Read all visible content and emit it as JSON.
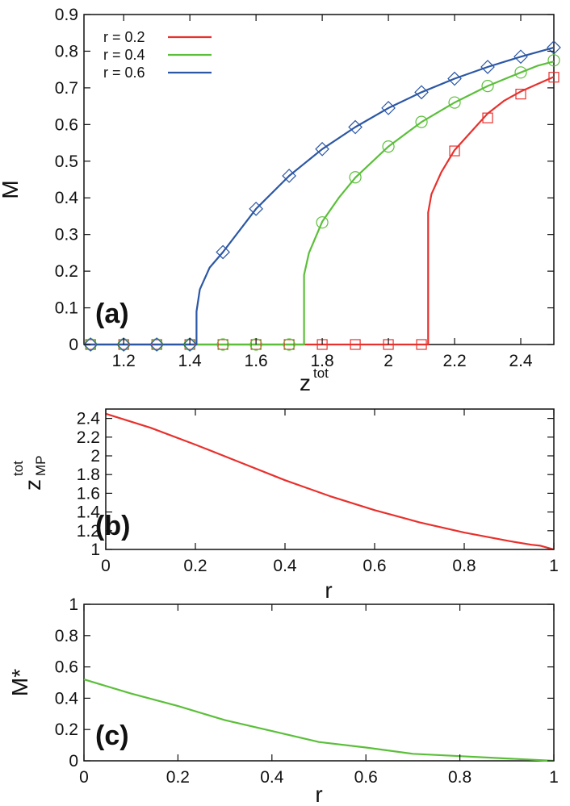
{
  "chart_data": [
    {
      "panel_label": "(a)",
      "type": "line",
      "xlabel": "z",
      "xlabel_sup": "tot",
      "ylabel": "M",
      "xlim": [
        1.08,
        2.5
      ],
      "ylim": [
        0,
        0.9
      ],
      "xticks": [
        "1.2",
        "1.4",
        "1.6",
        "1.8",
        "2",
        "2.2",
        "2.4"
      ],
      "yticks": [
        "0",
        "0.1",
        "0.2",
        "0.3",
        "0.4",
        "0.5",
        "0.6",
        "0.7",
        "0.8",
        "0.9"
      ],
      "legend_position": "top-left",
      "series": [
        {
          "name": "r = 0.2",
          "color": "#e8302c",
          "marker": "square",
          "threshold": 2.12,
          "jump": 0.36,
          "curve": [
            [
              1.08,
              0
            ],
            [
              2.12,
              0
            ],
            [
              2.12,
              0.36
            ],
            [
              2.13,
              0.41
            ],
            [
              2.16,
              0.47
            ],
            [
              2.2,
              0.53
            ],
            [
              2.25,
              0.58
            ],
            [
              2.3,
              0.63
            ],
            [
              2.35,
              0.665
            ],
            [
              2.4,
              0.69
            ],
            [
              2.45,
              0.71
            ],
            [
              2.5,
              0.73
            ]
          ],
          "points": [
            [
              1.1,
              0
            ],
            [
              1.2,
              0
            ],
            [
              1.3,
              0
            ],
            [
              1.4,
              0
            ],
            [
              1.5,
              0
            ],
            [
              1.6,
              0
            ],
            [
              1.7,
              0
            ],
            [
              1.8,
              0
            ],
            [
              1.9,
              0
            ],
            [
              2.0,
              0
            ],
            [
              2.1,
              0
            ],
            [
              2.2,
              0.528
            ],
            [
              2.3,
              0.618
            ],
            [
              2.4,
              0.683
            ],
            [
              2.5,
              0.729
            ]
          ]
        },
        {
          "name": "r = 0.4",
          "color": "#5bbf3a",
          "marker": "circle",
          "threshold": 1.745,
          "jump": 0.19,
          "curve": [
            [
              1.08,
              0
            ],
            [
              1.745,
              0
            ],
            [
              1.745,
              0.19
            ],
            [
              1.76,
              0.25
            ],
            [
              1.8,
              0.335
            ],
            [
              1.85,
              0.4
            ],
            [
              1.9,
              0.455
            ],
            [
              2.0,
              0.54
            ],
            [
              2.1,
              0.607
            ],
            [
              2.2,
              0.66
            ],
            [
              2.3,
              0.705
            ],
            [
              2.4,
              0.742
            ],
            [
              2.45,
              0.76
            ],
            [
              2.5,
              0.772
            ]
          ],
          "points": [
            [
              1.1,
              0
            ],
            [
              1.2,
              0
            ],
            [
              1.3,
              0
            ],
            [
              1.4,
              0
            ],
            [
              1.5,
              0
            ],
            [
              1.6,
              0
            ],
            [
              1.7,
              0
            ],
            [
              1.8,
              0.333
            ],
            [
              1.9,
              0.456
            ],
            [
              2.0,
              0.54
            ],
            [
              2.1,
              0.607
            ],
            [
              2.2,
              0.66
            ],
            [
              2.3,
              0.705
            ],
            [
              2.4,
              0.742
            ],
            [
              2.5,
              0.775
            ]
          ]
        },
        {
          "name": "r = 0.6",
          "color": "#2b57a5",
          "marker": "diamond",
          "threshold": 1.42,
          "jump": 0.09,
          "curve": [
            [
              1.08,
              0
            ],
            [
              1.42,
              0
            ],
            [
              1.42,
              0.09
            ],
            [
              1.43,
              0.15
            ],
            [
              1.46,
              0.21
            ],
            [
              1.5,
              0.252
            ],
            [
              1.6,
              0.37
            ],
            [
              1.7,
              0.46
            ],
            [
              1.8,
              0.533
            ],
            [
              1.9,
              0.593
            ],
            [
              2.0,
              0.645
            ],
            [
              2.1,
              0.688
            ],
            [
              2.2,
              0.725
            ],
            [
              2.3,
              0.757
            ],
            [
              2.4,
              0.785
            ],
            [
              2.5,
              0.81
            ]
          ],
          "points": [
            [
              1.1,
              0
            ],
            [
              1.2,
              0
            ],
            [
              1.3,
              0
            ],
            [
              1.4,
              0
            ],
            [
              1.5,
              0.252
            ],
            [
              1.6,
              0.37
            ],
            [
              1.7,
              0.46
            ],
            [
              1.8,
              0.533
            ],
            [
              1.9,
              0.593
            ],
            [
              2.0,
              0.645
            ],
            [
              2.1,
              0.688
            ],
            [
              2.2,
              0.725
            ],
            [
              2.3,
              0.757
            ],
            [
              2.4,
              0.785
            ],
            [
              2.5,
              0.81
            ]
          ]
        }
      ]
    },
    {
      "panel_label": "(b)",
      "type": "line",
      "xlabel": "r",
      "ylabel": "z",
      "ylabel_sup": "tot",
      "ylabel_sub": "MP",
      "xlim": [
        0,
        1
      ],
      "ylim": [
        1,
        2.5
      ],
      "xticks": [
        "0",
        "0.2",
        "0.4",
        "0.6",
        "0.8",
        "1"
      ],
      "yticks": [
        "1",
        "1.2",
        "1.4",
        "1.6",
        "1.8",
        "2",
        "2.2",
        "2.4"
      ],
      "series": [
        {
          "name": "z_MP^tot",
          "color": "#e8302c",
          "x": [
            0,
            0.1,
            0.2,
            0.3,
            0.4,
            0.5,
            0.6,
            0.7,
            0.8,
            0.9,
            0.95,
            0.97,
            1.0
          ],
          "y": [
            2.45,
            2.3,
            2.12,
            1.93,
            1.74,
            1.57,
            1.42,
            1.29,
            1.18,
            1.09,
            1.05,
            1.04,
            1.0
          ]
        }
      ]
    },
    {
      "panel_label": "(c)",
      "type": "line",
      "xlabel": "r",
      "ylabel": "M*",
      "xlim": [
        0,
        1
      ],
      "ylim": [
        0,
        1
      ],
      "xticks": [
        "0",
        "0.2",
        "0.4",
        "0.6",
        "0.8",
        "1"
      ],
      "yticks": [
        "0",
        "0.2",
        "0.4",
        "0.6",
        "0.8",
        "1"
      ],
      "series": [
        {
          "name": "M*",
          "color": "#5bbf3a",
          "x": [
            0,
            0.1,
            0.2,
            0.3,
            0.4,
            0.5,
            0.6,
            0.7,
            0.8,
            0.9,
            1.0
          ],
          "y": [
            0.52,
            0.43,
            0.35,
            0.26,
            0.19,
            0.12,
            0.085,
            0.045,
            0.03,
            0.015,
            0.0
          ]
        }
      ]
    }
  ]
}
